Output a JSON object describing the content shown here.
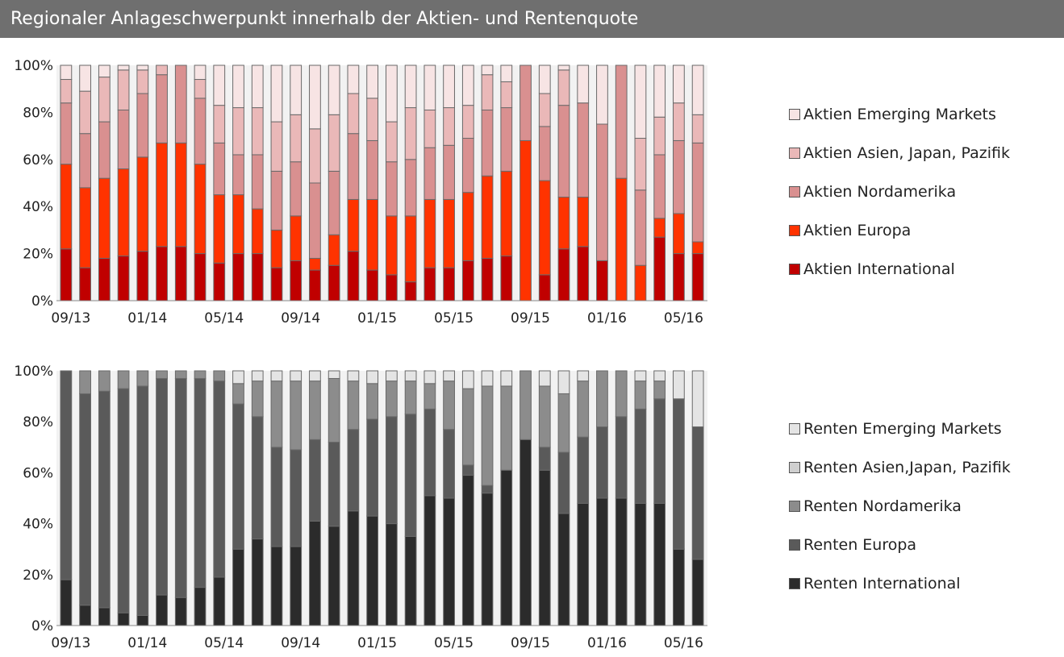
{
  "header": {
    "title": "Regionaler Anlageschwerpunkt innerhalb der Aktien- und Rentenquote"
  },
  "chart_data": [
    {
      "type": "bar",
      "stacked": true,
      "ylim": [
        0,
        100
      ],
      "yticks": [
        "0%",
        "20%",
        "40%",
        "60%",
        "80%",
        "100%"
      ],
      "xticks": [
        "09/13",
        "01/14",
        "05/14",
        "09/14",
        "01/15",
        "05/15",
        "09/15",
        "01/16",
        "05/16"
      ],
      "legend_position": "right",
      "categories": [
        "09/13",
        "10/13",
        "11/13",
        "12/13",
        "01/14",
        "02/14",
        "03/14",
        "04/14",
        "05/14",
        "06/14",
        "07/14",
        "08/14",
        "09/14",
        "10/14",
        "11/14",
        "12/14",
        "01/15",
        "02/15",
        "03/15",
        "04/15",
        "05/15",
        "06/15",
        "07/15",
        "08/15",
        "09/15",
        "10/15",
        "11/15",
        "12/15",
        "01/16",
        "02/16",
        "03/16",
        "04/16",
        "05/16",
        "06/16"
      ],
      "series": [
        {
          "name": "Aktien International",
          "color": "#c00000",
          "values": [
            22,
            14,
            18,
            19,
            21,
            23,
            23,
            20,
            16,
            20,
            20,
            14,
            17,
            13,
            15,
            21,
            13,
            11,
            8,
            14,
            14,
            17,
            18,
            19,
            0,
            11,
            22,
            23,
            17,
            0,
            0,
            27,
            20,
            20
          ]
        },
        {
          "name": "Aktien Europa",
          "color": "#ff3300",
          "values": [
            36,
            34,
            34,
            37,
            40,
            44,
            44,
            38,
            29,
            25,
            19,
            16,
            19,
            5,
            13,
            22,
            30,
            25,
            28,
            29,
            29,
            29,
            35,
            36,
            68,
            40,
            22,
            21,
            0,
            52,
            15,
            8,
            17,
            5
          ]
        },
        {
          "name": "Aktien Nordamerika",
          "color": "#d99090",
          "values": [
            26,
            23,
            24,
            25,
            27,
            29,
            33,
            28,
            22,
            17,
            23,
            25,
            23,
            32,
            27,
            28,
            25,
            23,
            24,
            22,
            23,
            23,
            28,
            27,
            32,
            23,
            39,
            40,
            58,
            48,
            32,
            27,
            31,
            42
          ]
        },
        {
          "name": "Aktien Asien, Japan, Pazifik",
          "color": "#eab8b8",
          "values": [
            10,
            18,
            19,
            17,
            10,
            4,
            0,
            8,
            16,
            20,
            20,
            21,
            20,
            23,
            24,
            17,
            18,
            17,
            22,
            16,
            16,
            14,
            15,
            11,
            0,
            14,
            15,
            0,
            0,
            0,
            22,
            16,
            16,
            12
          ]
        },
        {
          "name": "Aktien Emerging Markets",
          "color": "#f7e4e4",
          "values": [
            6,
            11,
            5,
            2,
            2,
            0,
            0,
            6,
            17,
            18,
            18,
            24,
            21,
            27,
            21,
            12,
            14,
            24,
            18,
            19,
            18,
            17,
            4,
            7,
            0,
            12,
            2,
            16,
            25,
            0,
            31,
            22,
            16,
            21
          ]
        }
      ]
    },
    {
      "type": "bar",
      "stacked": true,
      "ylim": [
        0,
        100
      ],
      "yticks": [
        "0%",
        "20%",
        "40%",
        "60%",
        "80%",
        "100%"
      ],
      "xticks": [
        "09/13",
        "01/14",
        "05/14",
        "09/14",
        "01/15",
        "05/15",
        "09/15",
        "01/16",
        "05/16"
      ],
      "legend_position": "right",
      "categories": [
        "09/13",
        "10/13",
        "11/13",
        "12/13",
        "01/14",
        "02/14",
        "03/14",
        "04/14",
        "05/14",
        "06/14",
        "07/14",
        "08/14",
        "09/14",
        "10/14",
        "11/14",
        "12/14",
        "01/15",
        "02/15",
        "03/15",
        "04/15",
        "05/15",
        "06/15",
        "07/15",
        "08/15",
        "09/15",
        "10/15",
        "11/15",
        "12/15",
        "01/16",
        "02/16",
        "03/16",
        "04/16",
        "05/16",
        "06/16"
      ],
      "series": [
        {
          "name": "Renten International",
          "color": "#2b2b2b",
          "values": [
            18,
            8,
            7,
            5,
            4,
            12,
            11,
            15,
            19,
            30,
            34,
            31,
            31,
            41,
            39,
            45,
            43,
            40,
            35,
            51,
            50,
            59,
            52,
            61,
            73,
            61,
            44,
            48,
            50,
            50,
            48,
            48,
            30,
            26
          ]
        },
        {
          "name": "Renten Europa",
          "color": "#5a5a5a",
          "values": [
            82,
            83,
            85,
            88,
            90,
            85,
            86,
            82,
            77,
            57,
            48,
            39,
            38,
            32,
            33,
            32,
            38,
            42,
            48,
            34,
            27,
            4,
            3,
            0,
            0,
            9,
            24,
            26,
            28,
            32,
            37,
            41,
            59,
            52
          ]
        },
        {
          "name": "Renten Nordamerika",
          "color": "#8c8c8c",
          "values": [
            0,
            9,
            8,
            7,
            6,
            3,
            3,
            3,
            4,
            8,
            14,
            26,
            27,
            23,
            25,
            19,
            14,
            14,
            13,
            10,
            19,
            30,
            39,
            33,
            27,
            24,
            23,
            22,
            22,
            18,
            11,
            7,
            0,
            0
          ]
        },
        {
          "name": "Renten Asien,Japan, Pazifik",
          "color": "#cfcfcf",
          "values": [
            0,
            0,
            0,
            0,
            0,
            0,
            0,
            0,
            0,
            0,
            0,
            0,
            0,
            0,
            0,
            0,
            0,
            0,
            0,
            0,
            0,
            0,
            0,
            0,
            0,
            0,
            0,
            0,
            0,
            0,
            0,
            0,
            0,
            0
          ]
        },
        {
          "name": "Renten Emerging Markets",
          "color": "#e4e4e4",
          "values": [
            0,
            0,
            0,
            0,
            0,
            0,
            0,
            0,
            0,
            5,
            4,
            4,
            4,
            4,
            3,
            4,
            5,
            4,
            4,
            5,
            4,
            7,
            6,
            6,
            0,
            6,
            9,
            4,
            0,
            0,
            4,
            4,
            11,
            22
          ]
        }
      ]
    }
  ]
}
